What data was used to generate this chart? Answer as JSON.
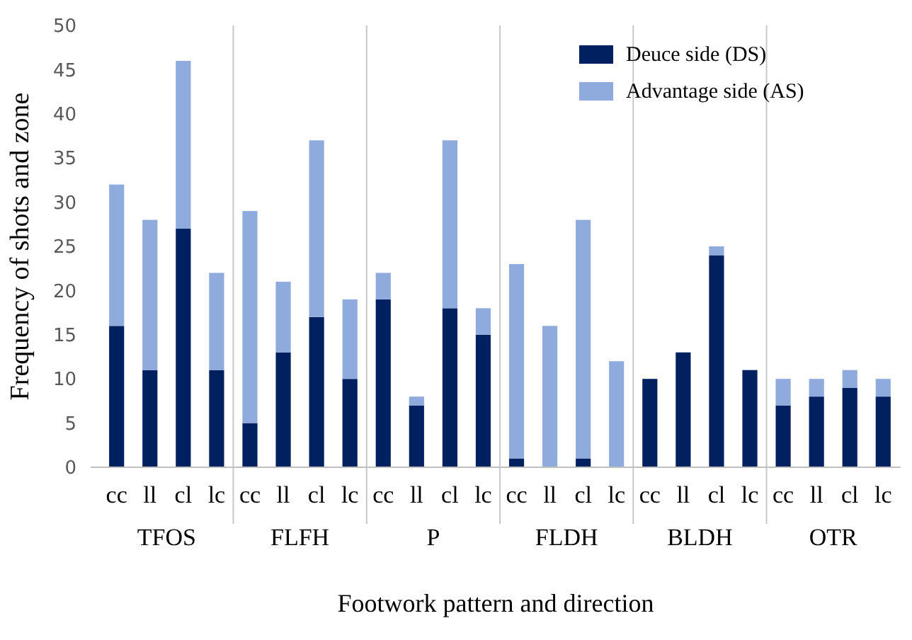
{
  "chart_data": {
    "type": "bar",
    "stacked": true,
    "xlabel": "Footwork pattern and direction",
    "ylabel": "Frequency of shots and zone",
    "categories": [
      "cc",
      "ll",
      "cl",
      "lc",
      "cc",
      "ll",
      "cl",
      "lc",
      "cc",
      "ll",
      "cl",
      "lc",
      "cc",
      "ll",
      "cl",
      "lc",
      "cc",
      "ll",
      "cl",
      "lc",
      "cc",
      "ll",
      "cl",
      "lc"
    ],
    "annotations": [
      "TFOS",
      "FLFH",
      "P",
      "FLDH",
      "BLDH",
      "OTR"
    ],
    "series": [
      {
        "name": "Deuce side (DS)",
        "color": "#002060",
        "values": [
          16,
          11,
          27,
          11,
          5,
          13,
          17,
          10,
          19,
          7,
          18,
          15,
          1,
          0,
          1,
          0,
          10,
          13,
          24,
          11,
          7,
          8,
          9,
          8
        ]
      },
      {
        "name": "Advantage side (AS)",
        "color": "#8faadc",
        "values": [
          16,
          17,
          19,
          11,
          24,
          8,
          20,
          9,
          3,
          1,
          19,
          3,
          22,
          16,
          27,
          12,
          0,
          0,
          1,
          0,
          3,
          2,
          2,
          2
        ]
      }
    ],
    "ylim": [
      0,
      50
    ],
    "yticks": [
      0,
      5,
      10,
      15,
      20,
      25,
      30,
      35,
      40,
      45,
      50
    ],
    "grid": false,
    "legend": "top right"
  }
}
